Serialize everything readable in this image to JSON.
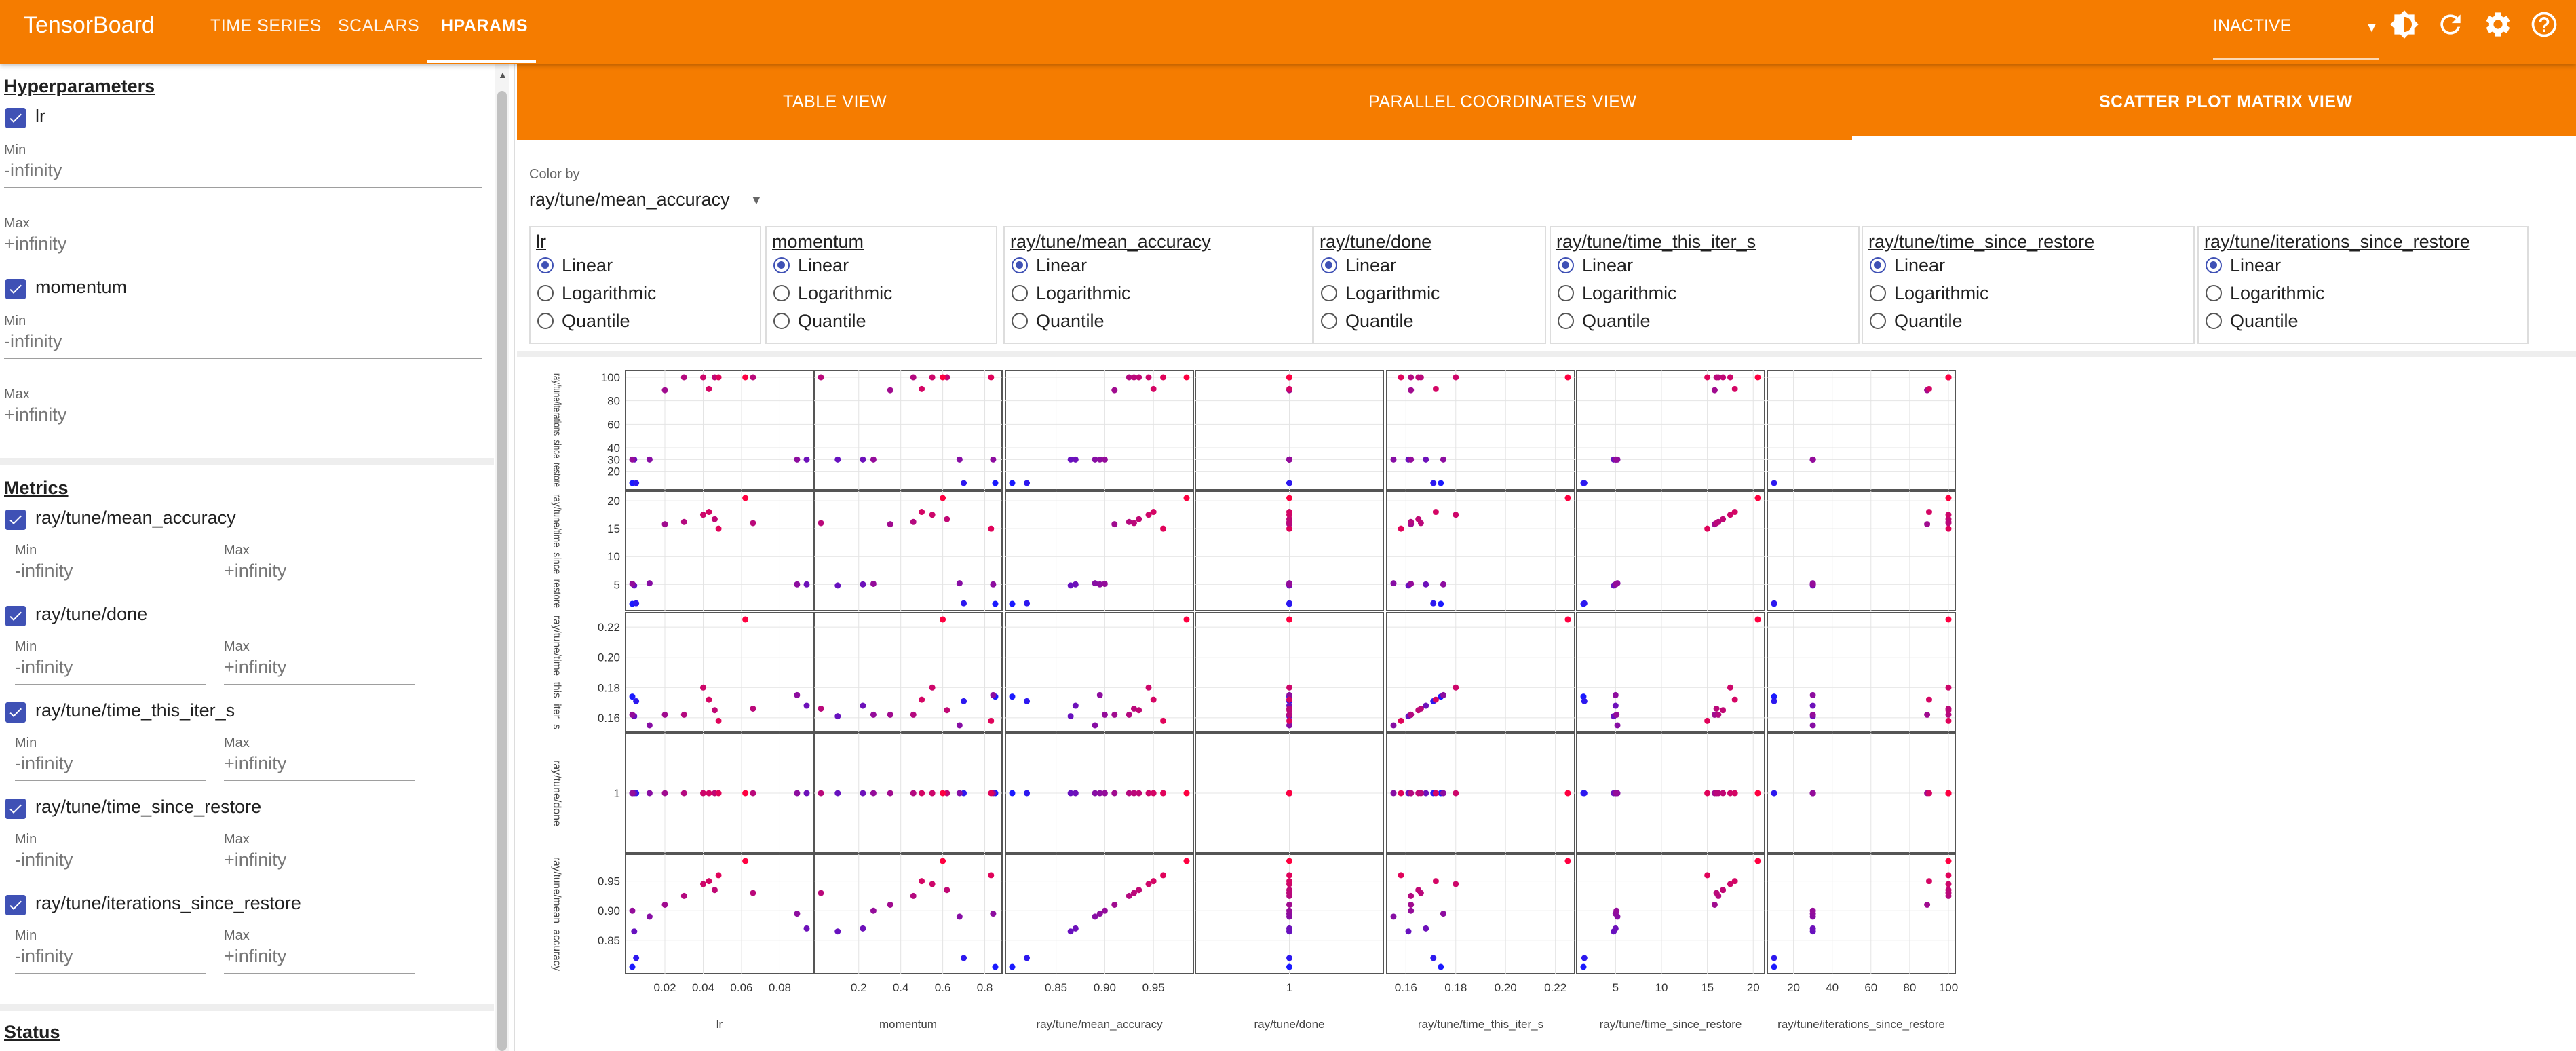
{
  "app": {
    "brand": "TensorBoard"
  },
  "nav": {
    "tabs": [
      "TIME SERIES",
      "SCALARS",
      "HPARAMS"
    ],
    "active": "HPARAMS"
  },
  "run_status": {
    "value": "INACTIVE"
  },
  "toolbar_icons": [
    "theme-toggle-icon",
    "reload-icon",
    "settings-icon",
    "help-icon"
  ],
  "colors": {
    "brand": "#f57c00",
    "accent": "#3f51b5",
    "point_low": "#1a1aff",
    "point_high": "#ff0040"
  },
  "sidebar": {
    "hyperparameters_title": "Hyperparameters",
    "hparams": [
      {
        "name": "lr",
        "checked": true,
        "min_label": "Min",
        "min": "-infinity",
        "max_label": "Max",
        "max": "+infinity"
      },
      {
        "name": "momentum",
        "checked": true,
        "min_label": "Min",
        "min": "-infinity",
        "max_label": "Max",
        "max": "+infinity"
      }
    ],
    "metrics_title": "Metrics",
    "metrics": [
      {
        "name": "ray/tune/mean_accuracy",
        "checked": true,
        "min_label": "Min",
        "min": "-infinity",
        "max_label": "Max",
        "max": "+infinity"
      },
      {
        "name": "ray/tune/done",
        "checked": true,
        "min_label": "Min",
        "min": "-infinity",
        "max_label": "Max",
        "max": "+infinity"
      },
      {
        "name": "ray/tune/time_this_iter_s",
        "checked": true,
        "min_label": "Min",
        "min": "-infinity",
        "max_label": "Max",
        "max": "+infinity"
      },
      {
        "name": "ray/tune/time_since_restore",
        "checked": true,
        "min_label": "Min",
        "min": "-infinity",
        "max_label": "Max",
        "max": "+infinity"
      },
      {
        "name": "ray/tune/iterations_since_restore",
        "checked": true,
        "min_label": "Min",
        "min": "-infinity",
        "max_label": "Max",
        "max": "+infinity"
      }
    ],
    "status_title": "Status"
  },
  "view_tabs": {
    "tabs": [
      "TABLE VIEW",
      "PARALLEL COORDINATES VIEW",
      "SCATTER PLOT MATRIX VIEW"
    ],
    "active": "SCATTER PLOT MATRIX VIEW"
  },
  "color_by": {
    "label": "Color by",
    "value": "ray/tune/mean_accuracy"
  },
  "scale_options": [
    "Linear",
    "Logarithmic",
    "Quantile"
  ],
  "scale_columns": [
    {
      "name": "lr",
      "selected": "Linear"
    },
    {
      "name": "momentum",
      "selected": "Linear"
    },
    {
      "name": "ray/tune/mean_accuracy",
      "selected": "Linear"
    },
    {
      "name": "ray/tune/done",
      "selected": "Linear"
    },
    {
      "name": "ray/tune/time_this_iter_s",
      "selected": "Linear"
    },
    {
      "name": "ray/tune/time_since_restore",
      "selected": "Linear"
    },
    {
      "name": "ray/tune/iterations_since_restore",
      "selected": "Linear"
    }
  ],
  "chart_data": {
    "type": "scatter",
    "color_by": "ray/tune/mean_accuracy",
    "grid": true,
    "columns": [
      "lr",
      "momentum",
      "ray/tune/mean_accuracy",
      "ray/tune/done",
      "ray/tune/time_this_iter_s",
      "ray/tune/time_since_restore",
      "ray/tune/iterations_since_restore"
    ],
    "column_ticks": [
      [
        "0.02",
        "0.04",
        "0.06",
        "0.08"
      ],
      [
        "0.2",
        "0.4",
        "0.6",
        "0.8"
      ],
      [
        "0.85",
        "0.90",
        "0.95"
      ],
      [
        "1"
      ],
      [
        "0.16",
        "0.18",
        "0.20",
        "0.22"
      ],
      [
        "5",
        "10",
        "15",
        "20"
      ],
      [
        "20",
        "40",
        "60",
        "80",
        "100"
      ]
    ],
    "row_labels": [
      "ray/tune/iterations_since_restore",
      "ray/tune/time_since_restore",
      "ray/tune/time_this_iter_s",
      "ray/tune/done",
      "ray/tune/mean_accuracy"
    ],
    "row_ticks": [
      [
        "100",
        "80",
        "60",
        "40",
        "30",
        "20"
      ],
      [
        "20",
        "15",
        "10",
        "5"
      ],
      [
        "0.22",
        "0.20",
        "0.18",
        "0.16"
      ],
      [
        "1"
      ],
      [
        "0.95",
        "0.90",
        "0.85"
      ]
    ],
    "trials": [
      {
        "lr": 0.003,
        "momentum": 0.85,
        "ray/tune/mean_accuracy": 0.805,
        "ray/tune/done": 1,
        "ray/tune/time_this_iter_s": 0.174,
        "ray/tune/time_since_restore": 1.5,
        "ray/tune/iterations_since_restore": 10
      },
      {
        "lr": 0.005,
        "momentum": 0.7,
        "ray/tune/mean_accuracy": 0.82,
        "ray/tune/done": 1,
        "ray/tune/time_this_iter_s": 0.171,
        "ray/tune/time_since_restore": 1.6,
        "ray/tune/iterations_since_restore": 10
      },
      {
        "lr": 0.004,
        "momentum": 0.1,
        "ray/tune/mean_accuracy": 0.865,
        "ray/tune/done": 1,
        "ray/tune/time_this_iter_s": 0.161,
        "ray/tune/time_since_restore": 4.8,
        "ray/tune/iterations_since_restore": 30
      },
      {
        "lr": 0.094,
        "momentum": 0.22,
        "ray/tune/mean_accuracy": 0.87,
        "ray/tune/done": 1,
        "ray/tune/time_this_iter_s": 0.168,
        "ray/tune/time_since_restore": 5.0,
        "ray/tune/iterations_since_restore": 30
      },
      {
        "lr": 0.012,
        "momentum": 0.68,
        "ray/tune/mean_accuracy": 0.89,
        "ray/tune/done": 1,
        "ray/tune/time_this_iter_s": 0.155,
        "ray/tune/time_since_restore": 5.2,
        "ray/tune/iterations_since_restore": 30
      },
      {
        "lr": 0.089,
        "momentum": 0.84,
        "ray/tune/mean_accuracy": 0.895,
        "ray/tune/done": 1,
        "ray/tune/time_this_iter_s": 0.175,
        "ray/tune/time_since_restore": 5.0,
        "ray/tune/iterations_since_restore": 30
      },
      {
        "lr": 0.003,
        "momentum": 0.27,
        "ray/tune/mean_accuracy": 0.9,
        "ray/tune/done": 1,
        "ray/tune/time_this_iter_s": 0.162,
        "ray/tune/time_since_restore": 5.1,
        "ray/tune/iterations_since_restore": 30
      },
      {
        "lr": 0.02,
        "momentum": 0.35,
        "ray/tune/mean_accuracy": 0.91,
        "ray/tune/done": 1,
        "ray/tune/time_this_iter_s": 0.162,
        "ray/tune/time_since_restore": 15.8,
        "ray/tune/iterations_since_restore": 89
      },
      {
        "lr": 0.03,
        "momentum": 0.46,
        "ray/tune/mean_accuracy": 0.925,
        "ray/tune/done": 1,
        "ray/tune/time_this_iter_s": 0.162,
        "ray/tune/time_since_restore": 16.2,
        "ray/tune/iterations_since_restore": 100
      },
      {
        "lr": 0.046,
        "momentum": 0.62,
        "ray/tune/mean_accuracy": 0.935,
        "ray/tune/done": 1,
        "ray/tune/time_this_iter_s": 0.165,
        "ray/tune/time_since_restore": 16.7,
        "ray/tune/iterations_since_restore": 100
      },
      {
        "lr": 0.04,
        "momentum": 0.55,
        "ray/tune/mean_accuracy": 0.945,
        "ray/tune/done": 1,
        "ray/tune/time_this_iter_s": 0.18,
        "ray/tune/time_since_restore": 17.5,
        "ray/tune/iterations_since_restore": 100
      },
      {
        "lr": 0.043,
        "momentum": 0.5,
        "ray/tune/mean_accuracy": 0.95,
        "ray/tune/done": 1,
        "ray/tune/time_this_iter_s": 0.172,
        "ray/tune/time_since_restore": 18.0,
        "ray/tune/iterations_since_restore": 90
      },
      {
        "lr": 0.048,
        "momentum": 0.83,
        "ray/tune/mean_accuracy": 0.96,
        "ray/tune/done": 1,
        "ray/tune/time_this_iter_s": 0.158,
        "ray/tune/time_since_restore": 15.0,
        "ray/tune/iterations_since_restore": 100
      },
      {
        "lr": 0.066,
        "momentum": 0.02,
        "ray/tune/mean_accuracy": 0.93,
        "ray/tune/done": 1,
        "ray/tune/time_this_iter_s": 0.166,
        "ray/tune/time_since_restore": 16.0,
        "ray/tune/iterations_since_restore": 100
      },
      {
        "lr": 0.062,
        "momentum": 0.6,
        "ray/tune/mean_accuracy": 0.984,
        "ray/tune/done": 1,
        "ray/tune/time_this_iter_s": 0.225,
        "ray/tune/time_since_restore": 20.5,
        "ray/tune/iterations_since_restore": 100
      }
    ]
  },
  "chart_labels": {
    "lr": "lr",
    "momentum": "momentum",
    "ray/tune/mean_accuracy": "ray/tune/mean_accuracy",
    "ray/tune/done": "ray/tune/done",
    "ray/tune/time_this_iter_s": "ray/tune/time_this_iter_s",
    "ray/tune/time_since_restore": "ray/tune/time_since_restore",
    "ray/tune/iterations_since_restore": "ray/tune/iterations_since_restore"
  }
}
